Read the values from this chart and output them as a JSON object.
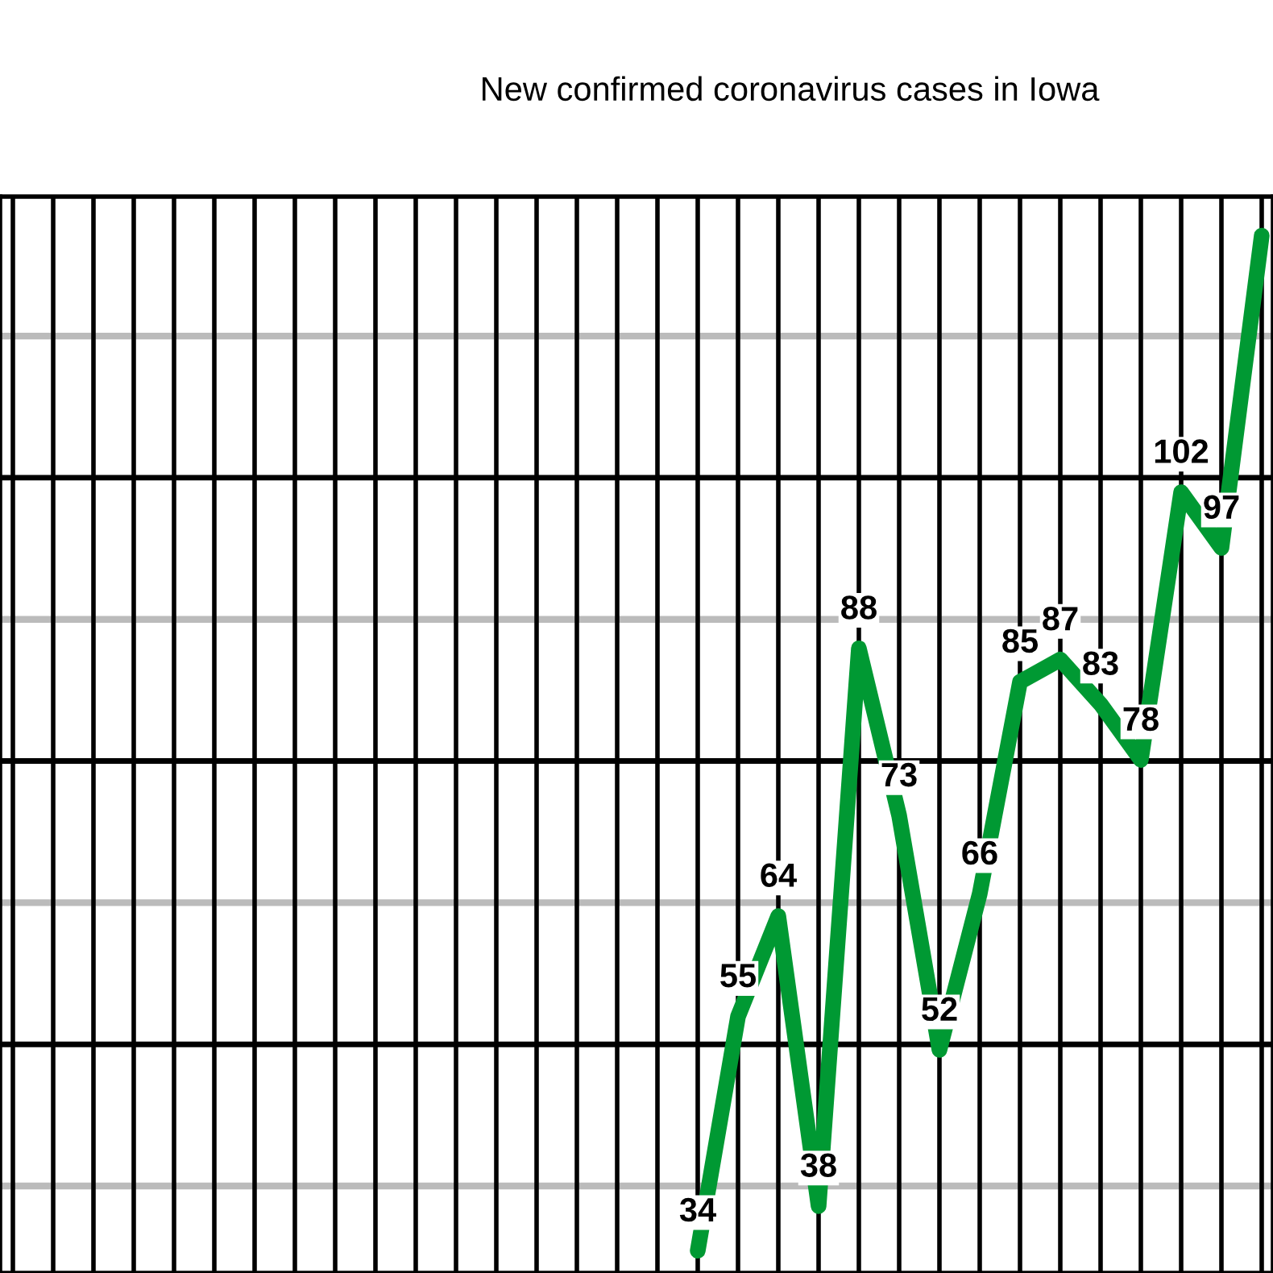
{
  "chart_data": {
    "type": "line",
    "title": "New confirmed coronavirus cases in Iowa",
    "categories": [
      null,
      null,
      null,
      null,
      null,
      null,
      null,
      null,
      null,
      null,
      null,
      null,
      null,
      null,
      null,
      null,
      null,
      null,
      null,
      null,
      null,
      null,
      null,
      null,
      null,
      null,
      null,
      null,
      null,
      null,
      null,
      null
    ],
    "series": [
      {
        "color": "#009933",
        "values": [
          null,
          null,
          null,
          null,
          null,
          null,
          null,
          null,
          null,
          null,
          null,
          null,
          null,
          null,
          null,
          null,
          null,
          34,
          55,
          64,
          38,
          88,
          73,
          52,
          66,
          85,
          87,
          83,
          78,
          102,
          97,
          125
        ],
        "value_labels": [
          null,
          null,
          null,
          null,
          null,
          null,
          null,
          null,
          null,
          null,
          null,
          null,
          null,
          null,
          null,
          null,
          null,
          "34",
          "55",
          "64",
          "38",
          "88",
          "73",
          "52",
          "66",
          "85",
          "87",
          "83",
          "78",
          "102",
          "97",
          null
        ]
      }
    ],
    "ylim": [
      32,
      128.5
    ],
    "yticks": [
      {
        "value": 39.8,
        "label": null
      },
      {
        "value": 52.5,
        "label": null
      },
      {
        "value": 65.2,
        "label": null
      },
      {
        "value": 77.9,
        "label": null
      },
      {
        "value": 90.6,
        "label": null
      },
      {
        "value": 103.3,
        "label": null
      },
      {
        "value": 116,
        "label": null
      }
    ],
    "grid": true,
    "marker": "none",
    "line_style": "solid"
  }
}
